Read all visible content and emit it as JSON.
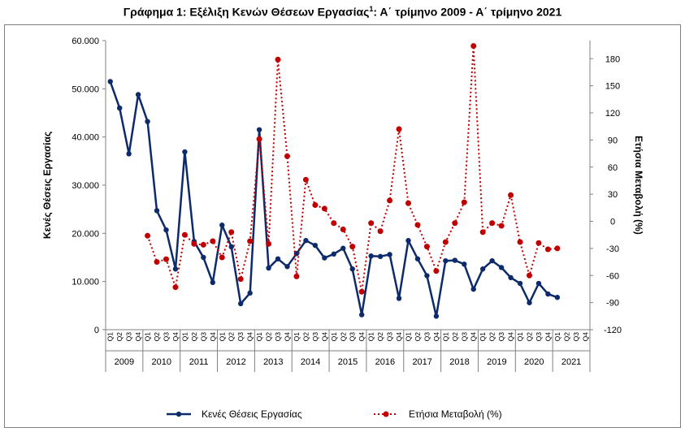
{
  "title": {
    "main": "Γράφημα 1: Εξέλιξη Κενών Θέσεων Εργασίας",
    "superscript": "1",
    "rest": ": Α΄ τρίμηνο 2009 - Α΄ τρίμηνο 2021"
  },
  "chart_data": {
    "type": "line",
    "ylabel": "Κενές Θέσεις Εργασίας",
    "y2label": "Ετήσια Μεταβολή (%)",
    "ylim": [
      0,
      60000
    ],
    "y2lim": [
      -120,
      200
    ],
    "y_ticks": [
      "0",
      "10.000",
      "20.000",
      "30.000",
      "40.000",
      "50.000",
      "60.000"
    ],
    "y2_ticks": [
      "-120",
      "-90",
      "-60",
      "-30",
      "0",
      "30",
      "60",
      "90",
      "120",
      "150",
      "180"
    ],
    "quarters": [
      "Q1",
      "Q2",
      "Q3",
      "Q4"
    ],
    "years": [
      "2009",
      "2010",
      "2011",
      "2012",
      "2013",
      "2014",
      "2015",
      "2016",
      "2017",
      "2018",
      "2019",
      "2020",
      "2021"
    ],
    "grid": false,
    "legend_position": "bottom",
    "series": [
      {
        "name": "Κενές Θέσεις Εργασίας",
        "axis": "left",
        "color": "#0d2a6b",
        "style": "solid",
        "values": [
          51500,
          46000,
          36500,
          48800,
          43200,
          24700,
          20700,
          12600,
          36900,
          18300,
          15000,
          9800,
          21700,
          17200,
          5400,
          7600,
          41500,
          12800,
          14700,
          13100,
          15800,
          18500,
          17500,
          14900,
          15700,
          16900,
          12600,
          3100,
          15300,
          15200,
          15600,
          6500,
          18500,
          14700,
          11200,
          2800,
          14300,
          14400,
          13600,
          8400,
          12600,
          14300,
          12900,
          10800,
          9600,
          5600,
          9600,
          7400,
          6700,
          null,
          null,
          null
        ]
      },
      {
        "name": "Ετήσια Μεταβολή (%)",
        "axis": "right",
        "color": "#c00000",
        "style": "dotted",
        "values": [
          null,
          null,
          null,
          null,
          -16,
          -45,
          -42,
          -73,
          -15,
          -25,
          -26,
          -22,
          -40,
          -12,
          -64,
          -22,
          91,
          -25,
          179,
          72,
          -61,
          46,
          18,
          14,
          -2,
          -9,
          -28,
          -78,
          -2,
          -11,
          23,
          102,
          20,
          -4,
          -28,
          -55,
          -23,
          -2,
          21,
          194,
          -12,
          -2,
          -5,
          29,
          -23,
          -60,
          -24,
          -31,
          -30,
          null,
          null,
          null
        ]
      }
    ]
  }
}
